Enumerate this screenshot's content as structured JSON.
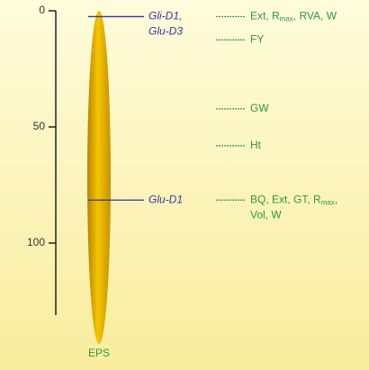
{
  "axis": {
    "ylim": [
      0,
      131
    ],
    "yticks": [
      0,
      50,
      100
    ]
  },
  "chromosome": {
    "label": "EPS"
  },
  "markers": [
    {
      "position": 2.5,
      "lines": [
        "Gli-D1,",
        "Glu-D3"
      ]
    },
    {
      "position": 81.5,
      "lines": [
        "Glu-D1"
      ]
    }
  ],
  "traits": [
    {
      "position": 2.5,
      "lines": [
        [
          {
            "text": "Ext, R"
          },
          {
            "text": "max",
            "sub": true
          },
          {
            "text": ", RVA, W"
          }
        ]
      ]
    },
    {
      "position": 12.5,
      "lines": [
        [
          {
            "text": "FY"
          }
        ]
      ]
    },
    {
      "position": 42.2,
      "lines": [
        [
          {
            "text": "GW"
          }
        ]
      ]
    },
    {
      "position": 58.1,
      "lines": [
        [
          {
            "text": "Ht"
          }
        ]
      ]
    },
    {
      "position": 81.5,
      "lines": [
        [
          {
            "text": "BQ, Ext, GT, R"
          },
          {
            "text": "max",
            "sub": true
          },
          {
            "text": ","
          }
        ],
        [
          {
            "text": "Vol, W"
          }
        ]
      ]
    }
  ]
}
